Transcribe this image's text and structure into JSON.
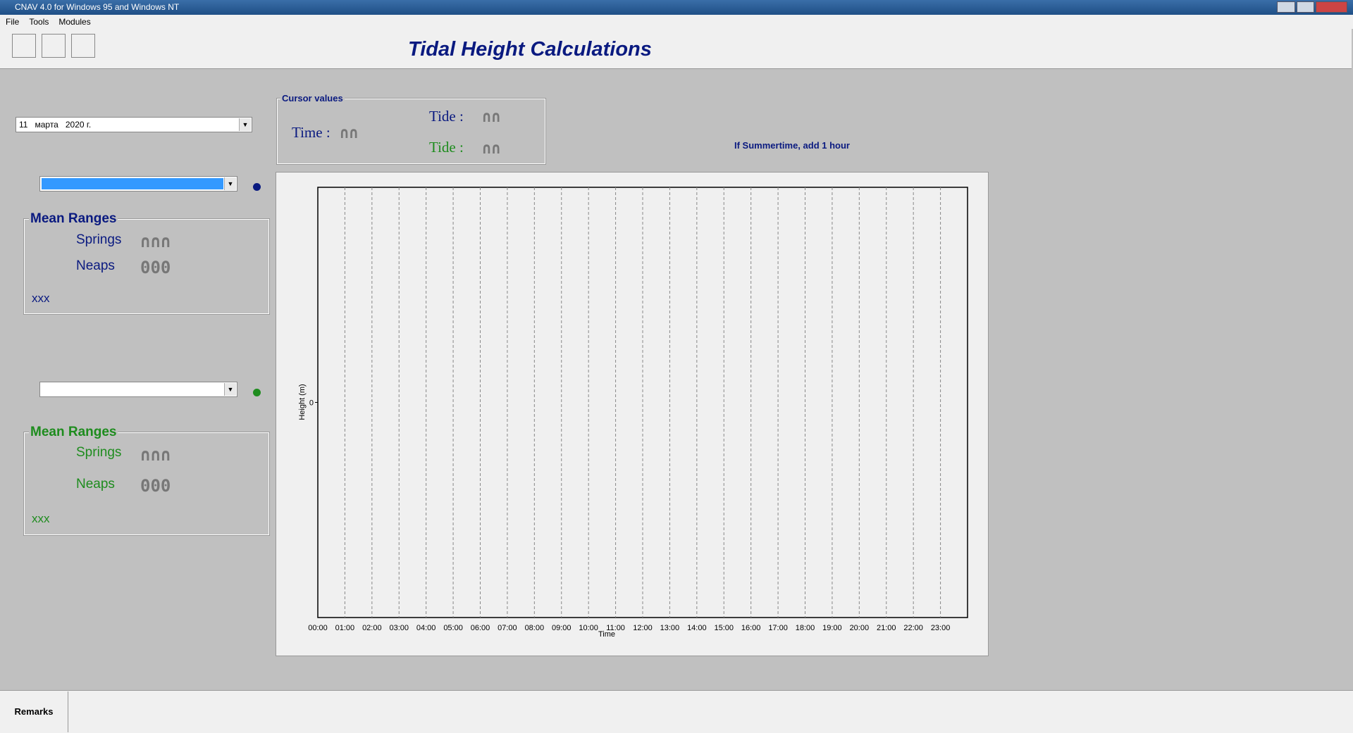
{
  "window": {
    "title": "CNAV 4.0 for Windows 95 and Windows NT"
  },
  "menu": [
    "File",
    "Tools",
    "Modules"
  ],
  "header": {
    "title": "Tidal Height Calculations"
  },
  "date": {
    "day": "11",
    "month": "марта",
    "year": "2020 г."
  },
  "cursor": {
    "legend": "Cursor values",
    "time_label": "Time :",
    "time_value": "∩∩",
    "tide1_label": "Tide :",
    "tide1_value": "∩∩",
    "tide2_label": "Tide :",
    "tide2_value": "∩∩"
  },
  "summertime_note": "If Summertime,  add 1 hour",
  "stations": [
    {
      "legend": "Mean Ranges",
      "springs_label": "Springs",
      "springs_value": "∩∩∩",
      "neaps_label": "Neaps",
      "neaps_value": "000",
      "name": "xxx"
    },
    {
      "legend": "Mean Ranges",
      "springs_label": "Springs",
      "springs_value": "∩∩∩",
      "neaps_label": "Neaps",
      "neaps_value": "000",
      "name": "xxx"
    }
  ],
  "chart": {
    "x_label": "Time",
    "y_label": "Height (m)",
    "yticks": [
      0
    ],
    "xticks": [
      "00:00",
      "01:00",
      "02:00",
      "03:00",
      "04:00",
      "05:00",
      "06:00",
      "07:00",
      "08:00",
      "09:00",
      "10:00",
      "11:00",
      "12:00",
      "13:00",
      "14:00",
      "15:00",
      "16:00",
      "17:00",
      "18:00",
      "19:00",
      "20:00",
      "21:00",
      "22:00",
      "23:00"
    ]
  },
  "footer": {
    "tab": "Remarks"
  }
}
